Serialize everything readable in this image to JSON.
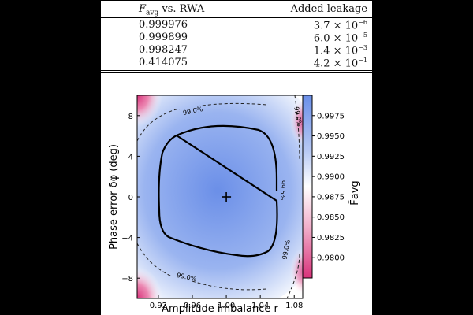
{
  "table": {
    "headers": [
      "F_avg vs. RWA",
      "Added leakage"
    ],
    "header_parts": {
      "f": "F",
      "f_sub": "avg",
      "rest": " vs. RWA",
      "leak": "Added leakage"
    },
    "rows": [
      {
        "favg": "0.999976",
        "leak_mant": "3.7",
        "leak_exp": "−6"
      },
      {
        "favg": "0.999899",
        "leak_mant": "6.0",
        "leak_exp": "−5"
      },
      {
        "favg": "0.998247",
        "leak_mant": "1.4",
        "leak_exp": "−3"
      },
      {
        "favg": "0.414075",
        "leak_mant": "4.2",
        "leak_exp": "−1"
      }
    ]
  },
  "chart_data": {
    "type": "heatmap",
    "xlabel": "Amplitude imbalance r",
    "ylabel": "Phase error δφ (deg)",
    "colorbar_label": "F̄avg",
    "xlim": [
      0.895,
      1.09
    ],
    "ylim": [
      -10,
      10
    ],
    "x_ticks": [
      "0.92",
      "0.96",
      "1.00",
      "1.04",
      "1.08"
    ],
    "x_tick_values": [
      0.92,
      0.96,
      1.0,
      1.04,
      1.08
    ],
    "y_ticks": [
      "8",
      "4",
      "0",
      "−4",
      "−8"
    ],
    "y_tick_values": [
      8,
      4,
      0,
      -4,
      -8
    ],
    "colorbar_range": [
      0.9775,
      1.0
    ],
    "colorbar_ticks": [
      "0.9975",
      "0.9950",
      "0.9925",
      "0.9900",
      "0.9875",
      "0.9850",
      "0.9825",
      "0.9800"
    ],
    "colorbar_tick_values": [
      0.9975,
      0.995,
      0.9925,
      0.99,
      0.9875,
      0.985,
      0.9825,
      0.98
    ],
    "optimum_marker": {
      "x": 1.0,
      "y": 0
    },
    "contours": [
      {
        "level": 0.995,
        "label": "99.5%",
        "style": "solid"
      },
      {
        "level": 0.99,
        "label": "99.0%",
        "style": "dashed"
      }
    ],
    "colors": {
      "high": "#6b8fe8",
      "mid": "#ffffff",
      "low": "#d8327a"
    }
  }
}
